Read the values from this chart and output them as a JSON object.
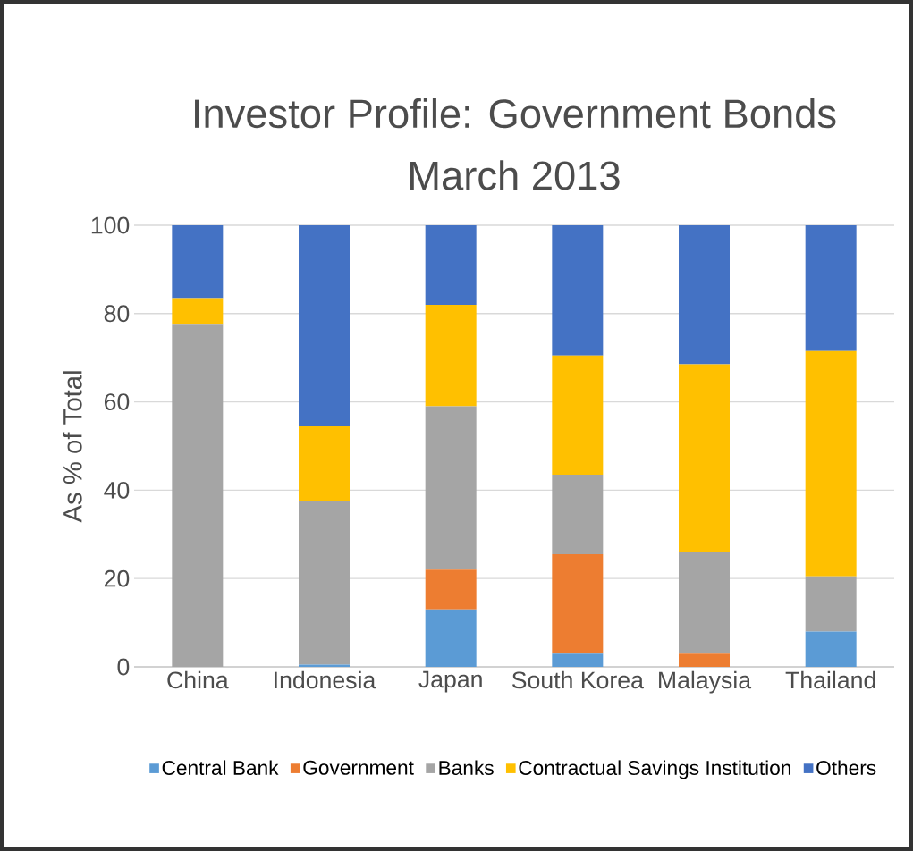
{
  "chart_data": {
    "type": "bar",
    "stacked": true,
    "title": "Investor Profile: Government Bonds",
    "subtitle": "March 2013",
    "ylabel": "As % of Total",
    "categories": [
      "China",
      "Indonesia",
      "Japan",
      "South Korea",
      "Malaysia",
      "Thailand"
    ],
    "series": [
      {
        "name": "Central Bank",
        "color": "#5b9bd5",
        "values": [
          0,
          0.5,
          13,
          3,
          0,
          8
        ]
      },
      {
        "name": "Government",
        "color": "#ed7d31",
        "values": [
          0,
          0,
          9,
          22.5,
          3,
          0
        ]
      },
      {
        "name": "Banks",
        "color": "#a5a5a5",
        "values": [
          77.5,
          37,
          37,
          18,
          23,
          12.5
        ]
      },
      {
        "name": "Contractual Savings Institution",
        "color": "#ffc000",
        "values": [
          6,
          17,
          23,
          27,
          42.5,
          51
        ]
      },
      {
        "name": "Others",
        "color": "#4472c4",
        "values": [
          16.5,
          45.5,
          18,
          29.5,
          31.5,
          28.5
        ]
      }
    ],
    "ylim": [
      0,
      100
    ],
    "yticks": [
      0,
      20,
      40,
      60,
      80,
      100
    ],
    "grid": "y",
    "legend": "bottom"
  }
}
